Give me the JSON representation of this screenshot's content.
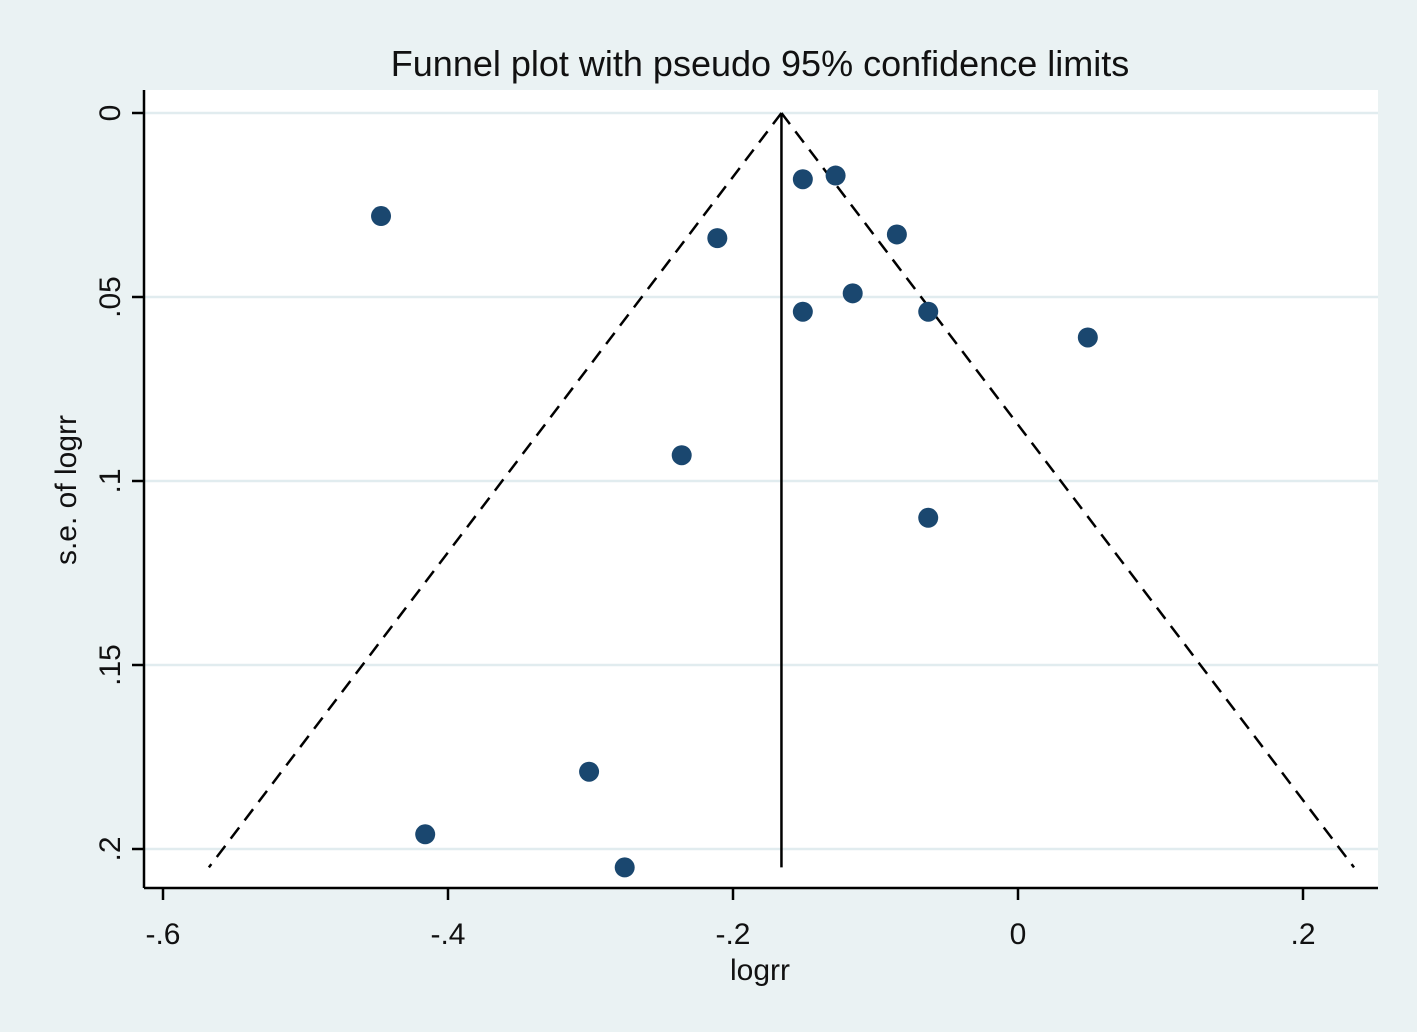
{
  "chart_data": {
    "type": "scatter",
    "title": "Funnel plot with pseudo 95% confidence limits",
    "xlabel": "logrr",
    "ylabel": "s.e. of logrr",
    "xlim": [
      -0.62,
      0.25
    ],
    "ylim": [
      0.21,
      0
    ],
    "y_reversed": true,
    "grid": true,
    "x_ticks": [
      -0.6,
      -0.4,
      -0.2,
      0,
      0.2
    ],
    "x_tick_labels": [
      "-.6",
      "-.4",
      "-.2",
      "0",
      ".2"
    ],
    "y_ticks": [
      0,
      0.05,
      0.1,
      0.15,
      0.2
    ],
    "y_tick_labels": [
      "0",
      ".05",
      ".1",
      ".15",
      ".2"
    ],
    "pooled_estimate": -0.166,
    "ci_multiplier": 1.96,
    "max_se": 0.205,
    "points": [
      {
        "x": -0.447,
        "y": 0.028
      },
      {
        "x": -0.151,
        "y": 0.018
      },
      {
        "x": -0.128,
        "y": 0.017
      },
      {
        "x": -0.211,
        "y": 0.034
      },
      {
        "x": -0.085,
        "y": 0.033
      },
      {
        "x": -0.116,
        "y": 0.049
      },
      {
        "x": -0.151,
        "y": 0.054
      },
      {
        "x": -0.063,
        "y": 0.054
      },
      {
        "x": 0.049,
        "y": 0.061
      },
      {
        "x": -0.236,
        "y": 0.093
      },
      {
        "x": -0.063,
        "y": 0.11
      },
      {
        "x": -0.301,
        "y": 0.179
      },
      {
        "x": -0.416,
        "y": 0.196
      },
      {
        "x": -0.276,
        "y": 0.205
      }
    ],
    "colors": {
      "background": "#eaf2f3",
      "plot_area": "#ffffff",
      "grid": "#e1ecef",
      "point": "#1a476f",
      "line": "#000000"
    }
  }
}
